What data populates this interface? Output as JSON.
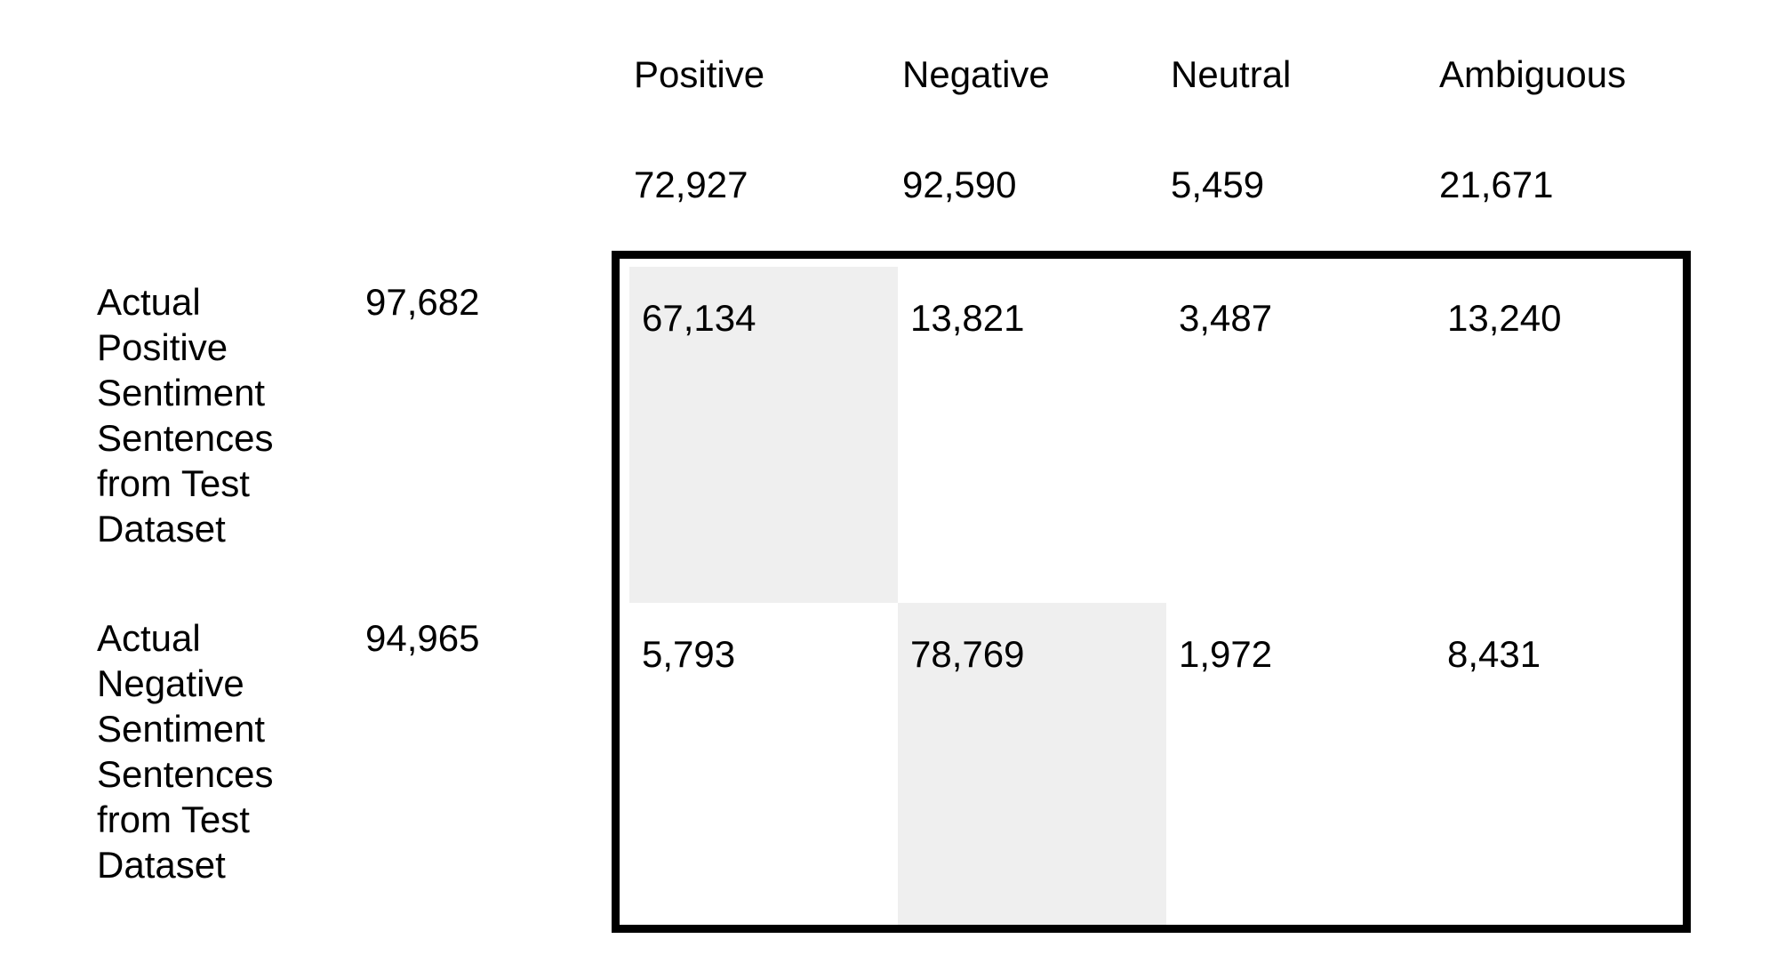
{
  "chart_data": {
    "type": "table",
    "title": "",
    "columns": [
      "Positive",
      "Negative",
      "Neutral",
      "Ambiguous"
    ],
    "column_totals": [
      "72,927",
      "92,590",
      "5,459",
      "21,671"
    ],
    "rows": [
      {
        "label": "Actual Positive Sentiment Sentences from Test Dataset",
        "total": "97,682",
        "values": [
          "67,134",
          "13,821",
          "3,487",
          "13,240"
        ]
      },
      {
        "label": "Actual Negative Sentiment Sentences from Test Dataset",
        "total": "94,965",
        "values": [
          "5,793",
          "78,769",
          "1,972",
          "8,431"
        ]
      }
    ],
    "highlight_color": "#efefef",
    "border_color": "#000000"
  }
}
